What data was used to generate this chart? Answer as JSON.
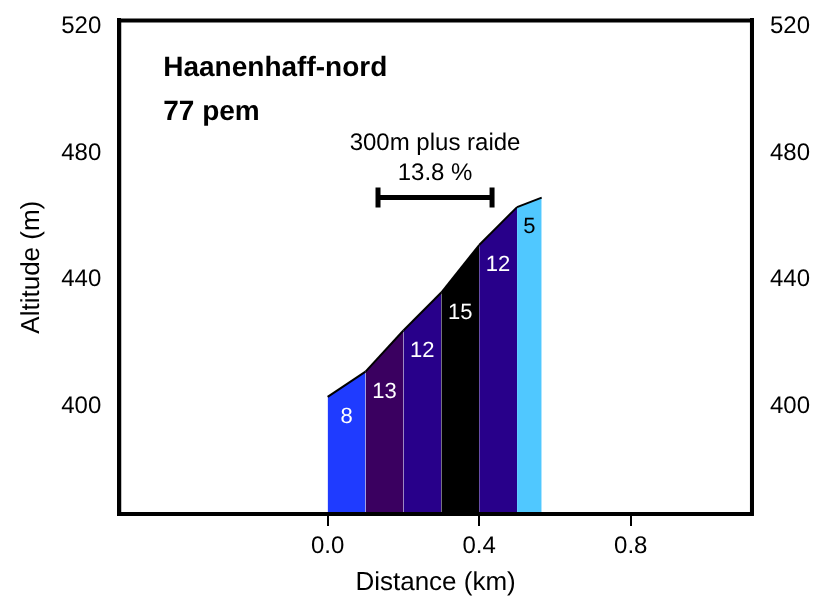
{
  "chart_data": {
    "type": "area",
    "title": "Haanenhaff-nord",
    "subtitle": "77 pem",
    "xlabel": "Distance (km)",
    "ylabel": "Altitude (m)",
    "xlim": [
      -0.55,
      1.12
    ],
    "xticks": [
      {
        "value": 0,
        "label": "0.0"
      },
      {
        "value": 0.4,
        "label": "0.4"
      },
      {
        "value": 0.8,
        "label": "0.8"
      }
    ],
    "ylim": [
      366,
      522
    ],
    "yticks": [
      400,
      440,
      480,
      520
    ],
    "y2lim": [
      366,
      522
    ],
    "y2ticks": [
      400,
      440,
      480,
      520
    ],
    "series": [
      {
        "color": "#1f3bff",
        "x": [
          0,
          0.1
        ],
        "values": [
          403,
          411
        ]
      },
      {
        "color": "#3a0060",
        "x": [
          0.1,
          0.2
        ],
        "values": [
          411,
          424
        ]
      },
      {
        "color": "#28008a",
        "x": [
          0.2,
          0.3
        ],
        "values": [
          424,
          436
        ]
      },
      {
        "color": "#000000",
        "x": [
          0.3,
          0.4
        ],
        "values": [
          436,
          451
        ]
      },
      {
        "color": "#28008a",
        "x": [
          0.4,
          0.5
        ],
        "values": [
          451,
          463
        ]
      },
      {
        "color": "#50c8ff",
        "x": [
          0.5,
          0.565
        ],
        "values": [
          463,
          466
        ]
      },
      {
        "type": "line",
        "color": "#000000",
        "x": [
          0.133,
          0.434
        ],
        "values": [
          466,
          466
        ]
      }
    ],
    "annotations": [
      "8",
      "13",
      "12",
      "15",
      "12",
      "5",
      "300m plus raide",
      "13.8 %"
    ],
    "grid": false,
    "legend": false
  }
}
